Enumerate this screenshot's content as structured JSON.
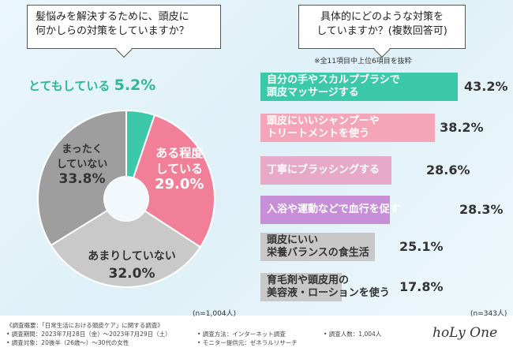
{
  "left_question": {
    "line1": "髪悩みを解決するために、頭皮に",
    "line2": "何かしらの対策をしていますか？"
  },
  "right_question": {
    "line1": "具体的にどのような対策を",
    "line2": "していますか？(複数回答可)"
  },
  "right_note": "※全11項目中上位6項目を抜粋",
  "left_n": "(n=1,004人)",
  "right_n": "(n=343人)",
  "colors": {
    "teal": "#3cc9a9",
    "pink": "#f07f97",
    "lightgray": "#c9c9c9",
    "gray": "#9e9e9e",
    "bar_pink": "#f4a6b8",
    "bar_mauve": "#e6a9c8",
    "bar_purple": "#c68fd8",
    "bar_gray": "#c8c8c8"
  },
  "chart_data": [
    {
      "type": "pie",
      "title": "髪悩みを解決するために、頭皮に何かしらの対策をしていますか？",
      "slices": [
        {
          "label": "とてもしている",
          "value": 5.2,
          "display": "5.2%"
        },
        {
          "label": "ある程度している",
          "value": 29.0,
          "display": "29.0%"
        },
        {
          "label": "あまりしていない",
          "value": 32.0,
          "display": "32.0%"
        },
        {
          "label": "まったくしていない",
          "value": 33.8,
          "display": "33.8%"
        }
      ],
      "labels": {
        "s0": "とてもしている",
        "s1a": "ある程度",
        "s1b": "している",
        "s2": "あまりしていない",
        "s3a": "まったく",
        "s3b": "していない"
      }
    },
    {
      "type": "bar",
      "title": "具体的にどのような対策をしていますか？(複数回答可)",
      "xlim": [
        0,
        50
      ],
      "bars": [
        {
          "line1": "自分の手やスカルプブラシで",
          "line2": "頭皮マッサージする",
          "value": 43.2,
          "display": "43.2%"
        },
        {
          "line1": "頭皮にいいシャンプーや",
          "line2": "トリートメントを使う",
          "value": 38.2,
          "display": "38.2%"
        },
        {
          "line1": "丁寧にブラッシングする",
          "line2": "",
          "value": 28.6,
          "display": "28.6%"
        },
        {
          "line1": "入浴や運動などで血行を促す",
          "line2": "",
          "value": 28.3,
          "display": "28.3%"
        },
        {
          "line1": "頭皮にいい",
          "line2": "栄養バランスの食生活",
          "value": 25.1,
          "display": "25.1%"
        },
        {
          "line1": "育毛剤や頭皮用の",
          "line2": "美容液・ローションを使う",
          "value": 17.8,
          "display": "17.8%"
        }
      ]
    }
  ],
  "footer": {
    "overview": "《調査概要：「日常生活における頭皮ケア」に関する調査》",
    "period": "• 調査期間：2023年7月28日（金）～2023年7月29日（土）",
    "target": "• 調査対象：20後半（26歳～）～30代の女性",
    "method": "• 調査方法：インターネット調査",
    "provider": "• モニター提供元：ゼネラルリサーチ",
    "count": "• 調査人数：1,004人",
    "logo": "hoLy One"
  }
}
